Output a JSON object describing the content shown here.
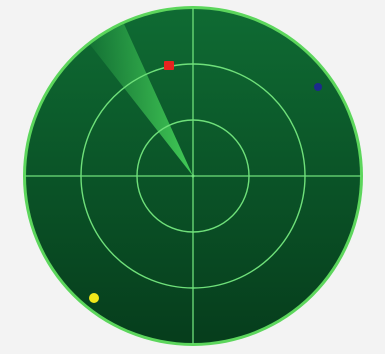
{
  "radar": {
    "colors": {
      "background": "#f3f3f3",
      "rim": "#5cd65c",
      "screen_top": "#0f6b33",
      "screen_bottom": "#063d1c",
      "grid": "#6fe07a",
      "sweep": "#45d35a"
    },
    "rings": 3,
    "crosshair": true,
    "sweep": {
      "leading_edge_icon": "radar-sweep-beam",
      "direction": "north-northwest"
    },
    "targets": [
      {
        "name": "target-red",
        "shape": "square",
        "color": "#e8231f"
      },
      {
        "name": "target-blue",
        "shape": "dot",
        "color": "#1c2a8c"
      },
      {
        "name": "target-yellow",
        "shape": "dot",
        "color": "#f2e81a"
      }
    ]
  }
}
